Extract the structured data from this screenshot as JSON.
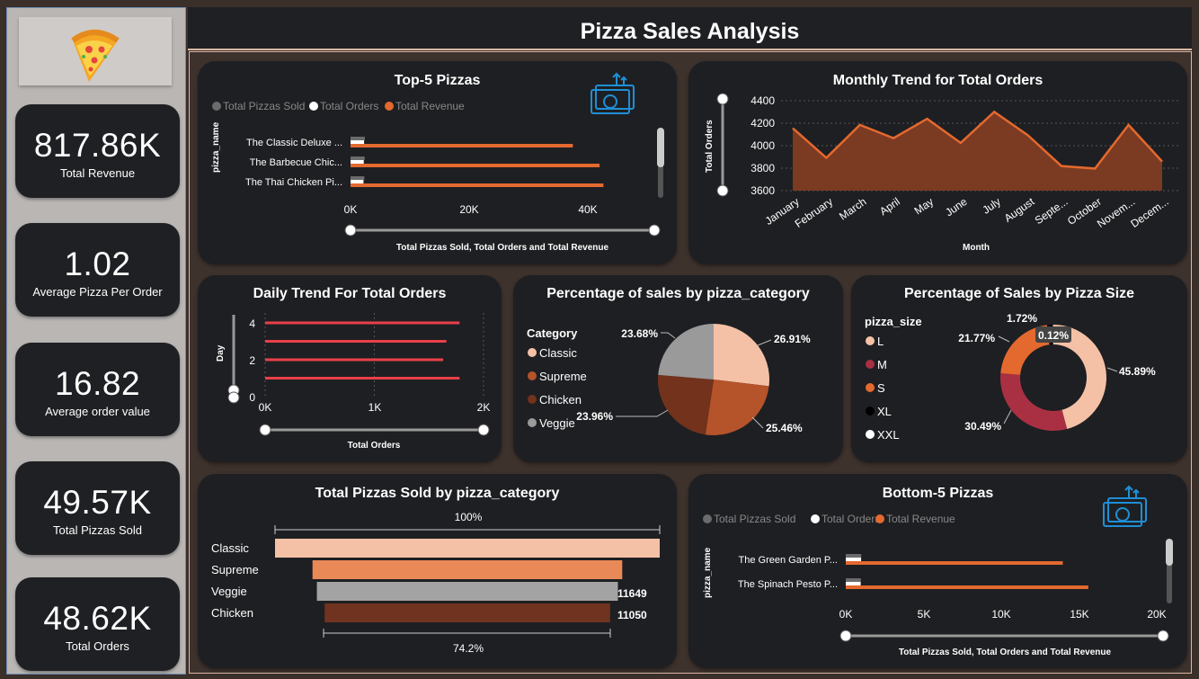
{
  "header": {
    "title": "Pizza Sales Analysis"
  },
  "kpis": [
    {
      "value": "817.86K",
      "label": "Total Revenue"
    },
    {
      "value": "1.02",
      "label": "Average Pizza Per Order"
    },
    {
      "value": "16.82",
      "label": "Average order value"
    },
    {
      "value": "49.57K",
      "label": "Total Pizzas Sold"
    },
    {
      "value": "48.62K",
      "label": "Total Orders"
    }
  ],
  "legend": {
    "items": [
      "Total Pizzas Sold",
      "Total Orders",
      "Total Revenue"
    ],
    "colors": [
      "#6b6b6b",
      "#ffffff",
      "#e3692f"
    ]
  },
  "top5": {
    "title": "Top-5 Pizzas",
    "y_axis_label": "pizza_name",
    "x_axis_label": "Total Pizzas Sold, Total Orders and Total Revenue",
    "ticks": [
      "0K",
      "20K",
      "40K"
    ]
  },
  "monthly": {
    "title": "Monthly Trend for Total Orders",
    "y_axis_label": "Total Orders",
    "x_axis_label": "Month",
    "ticks": [
      "4400",
      "4200",
      "4000",
      "3800",
      "3600"
    ],
    "months": [
      "January",
      "February",
      "March",
      "April",
      "May",
      "June",
      "July",
      "August",
      "Septe...",
      "October",
      "Novem...",
      "Decem..."
    ]
  },
  "daily": {
    "title": "Daily Trend For Total Orders",
    "y_axis_label": "Day",
    "x_axis_label": "Total Orders",
    "y_ticks": [
      "4",
      "2",
      "0"
    ],
    "x_ticks": [
      "0K",
      "1K",
      "2K"
    ]
  },
  "category_pie": {
    "title": "Percentage of sales by pizza_category",
    "legend_title": "Category",
    "slice_labels": [
      "26.91%",
      "25.46%",
      "23.96%",
      "23.68%"
    ]
  },
  "size_donut": {
    "title": "Percentage of Sales by Pizza Size",
    "legend_title": "pizza_size",
    "slice_labels": [
      "45.89%",
      "30.49%",
      "21.77%",
      "1.72%",
      "0.12%"
    ]
  },
  "sold_by_category": {
    "title": "Total Pizzas Sold by pizza_category",
    "top_bracket_label": "100%",
    "bottom_bracket_label": "74.2%",
    "value_labels": [
      "11649",
      "11050"
    ]
  },
  "bottom5": {
    "title": "Bottom-5 Pizzas",
    "y_axis_label": "pizza_name",
    "x_axis_label": "Total Pizzas Sold, Total Orders and Total Revenue",
    "ticks": [
      "0K",
      "5K",
      "10K",
      "15K",
      "20K"
    ]
  },
  "chart_data": [
    {
      "type": "bar",
      "title": "Top-5 Pizzas",
      "categories": [
        "The Classic Deluxe ...",
        "The Barbecue Chic...",
        "The Thai Chicken Pi..."
      ],
      "series": [
        {
          "name": "Total Pizzas Sold",
          "values": [
            2453,
            2432,
            2371
          ]
        },
        {
          "name": "Total Orders",
          "values": [
            2329,
            2273,
            2225
          ]
        },
        {
          "name": "Total Revenue",
          "values": [
            38180,
            42768,
            43434
          ]
        }
      ],
      "xlim": [
        0,
        46000
      ]
    },
    {
      "type": "area",
      "title": "Monthly Trend for Total Orders",
      "categories": [
        "January",
        "February",
        "March",
        "April",
        "May",
        "June",
        "July",
        "August",
        "Septe...",
        "October",
        "Novem...",
        "Decem..."
      ],
      "values": [
        4156,
        3892,
        4186,
        4067,
        4239,
        4025,
        4301,
        4094,
        3819,
        3797,
        4185,
        3859
      ],
      "ylim": [
        3600,
        4400
      ]
    },
    {
      "type": "bar",
      "title": "Daily Trend For Total Orders",
      "categories": [
        4,
        3,
        2,
        1
      ],
      "values": [
        1780,
        1660,
        1630,
        1780
      ],
      "xlim": [
        0,
        2000
      ]
    },
    {
      "type": "pie",
      "title": "Percentage of sales by pizza_category",
      "categories": [
        "Classic",
        "Supreme",
        "Chicken",
        "Veggie"
      ],
      "values": [
        26.91,
        25.46,
        23.96,
        23.68
      ],
      "colors": [
        "#f4c1a6",
        "#b5532a",
        "#73321c",
        "#9a9a9a"
      ]
    },
    {
      "type": "pie",
      "title": "Percentage of Sales by Pizza Size",
      "categories": [
        "L",
        "M",
        "S",
        "XL",
        "XXL"
      ],
      "values": [
        45.89,
        30.49,
        21.77,
        1.72,
        0.12
      ],
      "colors": [
        "#f4c1a6",
        "#a93042",
        "#e3692f",
        "#000000",
        "#ffffff"
      ]
    },
    {
      "type": "bar",
      "title": "Total Pizzas Sold by pizza_category",
      "categories": [
        "Classic",
        "Supreme",
        "Veggie",
        "Chicken"
      ],
      "values": [
        14888,
        11987,
        11649,
        11050
      ],
      "colors": [
        "#f4c1a6",
        "#e98957",
        "#a3a3a3",
        "#6f331f"
      ]
    },
    {
      "type": "bar",
      "title": "Bottom-5 Pizzas",
      "categories": [
        "The Green Garden P...",
        "The Spinach Pesto P..."
      ],
      "series": [
        {
          "name": "Total Pizzas Sold",
          "values": [
            997,
            970
          ]
        },
        {
          "name": "Total Orders",
          "values": [
            987,
            957
          ]
        },
        {
          "name": "Total Revenue",
          "values": [
            13956,
            15596
          ]
        }
      ],
      "xlim": [
        0,
        20000
      ]
    }
  ]
}
